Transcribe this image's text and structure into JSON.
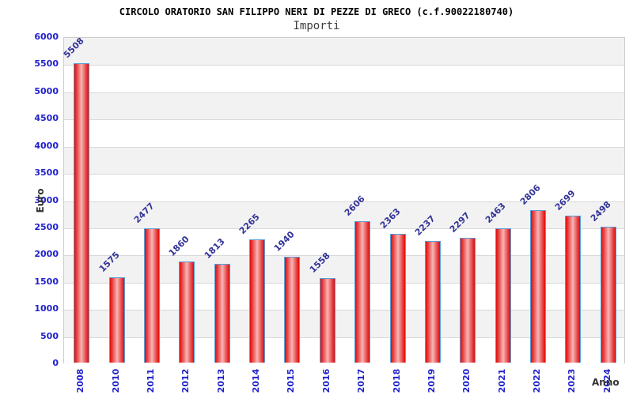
{
  "header": {
    "title": "CIRCOLO ORATORIO SAN FILIPPO NERI DI PEZZE DI GRECO (c.f.90022180740)",
    "subtitle": "Importi"
  },
  "chart_data": {
    "type": "bar",
    "title": "CIRCOLO ORATORIO SAN FILIPPO NERI DI PEZZE DI GRECO (c.f.90022180740)",
    "subtitle": "Importi",
    "xlabel": "Anno",
    "ylabel": "Euro",
    "categories": [
      "2008",
      "2010",
      "2011",
      "2012",
      "2013",
      "2014",
      "2015",
      "2016",
      "2017",
      "2018",
      "2019",
      "2020",
      "2021",
      "2022",
      "2023",
      "2024"
    ],
    "values": [
      5508,
      1575,
      2477,
      1860,
      1813,
      2265,
      1940,
      1558,
      2606,
      2363,
      2237,
      2297,
      2463,
      2806,
      2699,
      2498
    ],
    "ylim": [
      0,
      6000
    ],
    "ytick_step": 500,
    "grid": true,
    "legend": false,
    "bands_alternating": true,
    "colors": {
      "tick_label": "#2222cc",
      "value_label": "#333399",
      "bar_border": "#5b9bd5",
      "bar_fill_edge": "#d90f0f",
      "bar_fill_center": "#f7b6b6",
      "band_gray": "#f2f2f2",
      "gridline": "#d9d9d9",
      "plot_border": "#cccccc",
      "axis_title": "#333333",
      "title": "#000000"
    }
  }
}
